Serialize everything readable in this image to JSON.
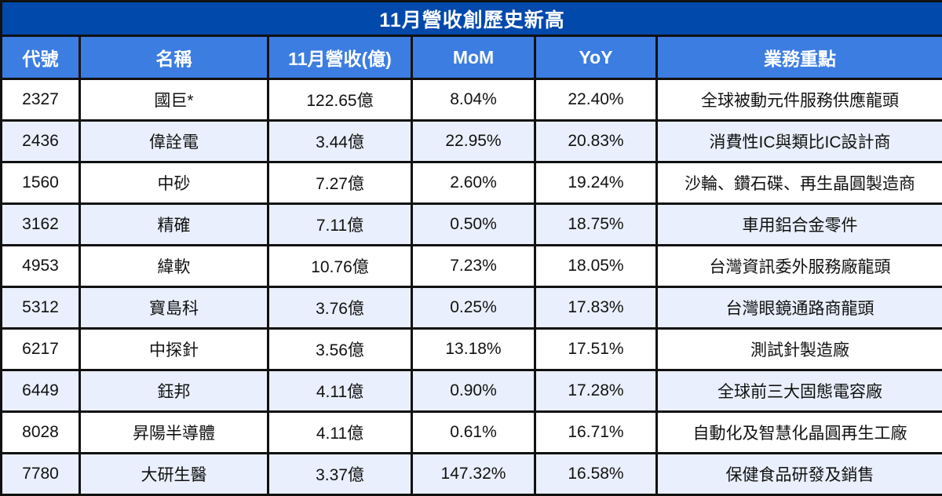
{
  "title": "11月營收創歷史新高",
  "colors": {
    "title_bg": "#0249AC",
    "header_bg": "#3C7DE2",
    "row_alt_bg": "#E9EFFC",
    "row_bg": "#FFFFFF",
    "border": "#111111",
    "header_text": "#FFFFFF",
    "cell_text": "#111111"
  },
  "table": {
    "headers": [
      "代號",
      "名稱",
      "11月營收(億)",
      "MoM",
      "YoY",
      "業務重點"
    ],
    "column_names": [
      "code",
      "name",
      "revenue",
      "mom",
      "yoy",
      "business"
    ],
    "rows": [
      [
        "2327",
        "國巨*",
        "122.65億",
        "8.04%",
        "22.40%",
        "全球被動元件服務供應龍頭"
      ],
      [
        "2436",
        "偉詮電",
        "3.44億",
        "22.95%",
        "20.83%",
        "消費性IC與類比IC設計商"
      ],
      [
        "1560",
        "中砂",
        "7.27億",
        "2.60%",
        "19.24%",
        "沙輪、鑽石碟、再生晶圓製造商"
      ],
      [
        "3162",
        "精確",
        "7.11億",
        "0.50%",
        "18.75%",
        "車用鋁合金零件"
      ],
      [
        "4953",
        "緯軟",
        "10.76億",
        "7.23%",
        "18.05%",
        "台灣資訊委外服務廠龍頭"
      ],
      [
        "5312",
        "寶島科",
        "3.76億",
        "0.25%",
        "17.83%",
        "台灣眼鏡通路商龍頭"
      ],
      [
        "6217",
        "中探針",
        "3.56億",
        "13.18%",
        "17.51%",
        "測試針製造廠"
      ],
      [
        "6449",
        "鈺邦",
        "4.11億",
        "0.90%",
        "17.28%",
        "全球前三大固態電容廠"
      ],
      [
        "8028",
        "昇陽半導體",
        "4.11億",
        "0.61%",
        "16.71%",
        "自動化及智慧化晶圓再生工廠"
      ],
      [
        "7780",
        "大研生醫",
        "3.37億",
        "147.32%",
        "16.58%",
        "保健食品研發及銷售"
      ]
    ]
  },
  "chart_data": {
    "type": "table",
    "title": "11月營收創歷史新高",
    "columns": [
      "代號",
      "名稱",
      "11月營收(億)",
      "MoM",
      "YoY",
      "業務重點"
    ],
    "rows": [
      {
        "代號": "2327",
        "名稱": "國巨*",
        "11月營收(億)": 122.65,
        "MoM_pct": 8.04,
        "YoY_pct": 22.4,
        "業務重點": "全球被動元件服務供應龍頭"
      },
      {
        "代號": "2436",
        "名稱": "偉詮電",
        "11月營收(億)": 3.44,
        "MoM_pct": 22.95,
        "YoY_pct": 20.83,
        "業務重點": "消費性IC與類比IC設計商"
      },
      {
        "代號": "1560",
        "名稱": "中砂",
        "11月營收(億)": 7.27,
        "MoM_pct": 2.6,
        "YoY_pct": 19.24,
        "業務重點": "沙輪、鑽石碟、再生晶圓製造商"
      },
      {
        "代號": "3162",
        "名稱": "精確",
        "11月營收(億)": 7.11,
        "MoM_pct": 0.5,
        "YoY_pct": 18.75,
        "業務重點": "車用鋁合金零件"
      },
      {
        "代號": "4953",
        "名稱": "緯軟",
        "11月營收(億)": 10.76,
        "MoM_pct": 7.23,
        "YoY_pct": 18.05,
        "業務重點": "台灣資訊委外服務廠龍頭"
      },
      {
        "代號": "5312",
        "名稱": "寶島科",
        "11月營收(億)": 3.76,
        "MoM_pct": 0.25,
        "YoY_pct": 17.83,
        "業務重點": "台灣眼鏡通路商龍頭"
      },
      {
        "代號": "6217",
        "名稱": "中探針",
        "11月營收(億)": 3.56,
        "MoM_pct": 13.18,
        "YoY_pct": 17.51,
        "業務重點": "測試針製造廠"
      },
      {
        "代號": "6449",
        "名稱": "鈺邦",
        "11月營收(億)": 4.11,
        "MoM_pct": 0.9,
        "YoY_pct": 17.28,
        "業務重點": "全球前三大固態電容廠"
      },
      {
        "代號": "8028",
        "名稱": "昇陽半導體",
        "11月營收(億)": 4.11,
        "MoM_pct": 0.61,
        "YoY_pct": 16.71,
        "業務重點": "自動化及智慧化晶圓再生工廠"
      },
      {
        "代號": "7780",
        "名稱": "大研生醫",
        "11月營收(億)": 3.37,
        "MoM_pct": 147.32,
        "YoY_pct": 16.58,
        "業務重點": "保健食品研發及銷售"
      }
    ]
  }
}
